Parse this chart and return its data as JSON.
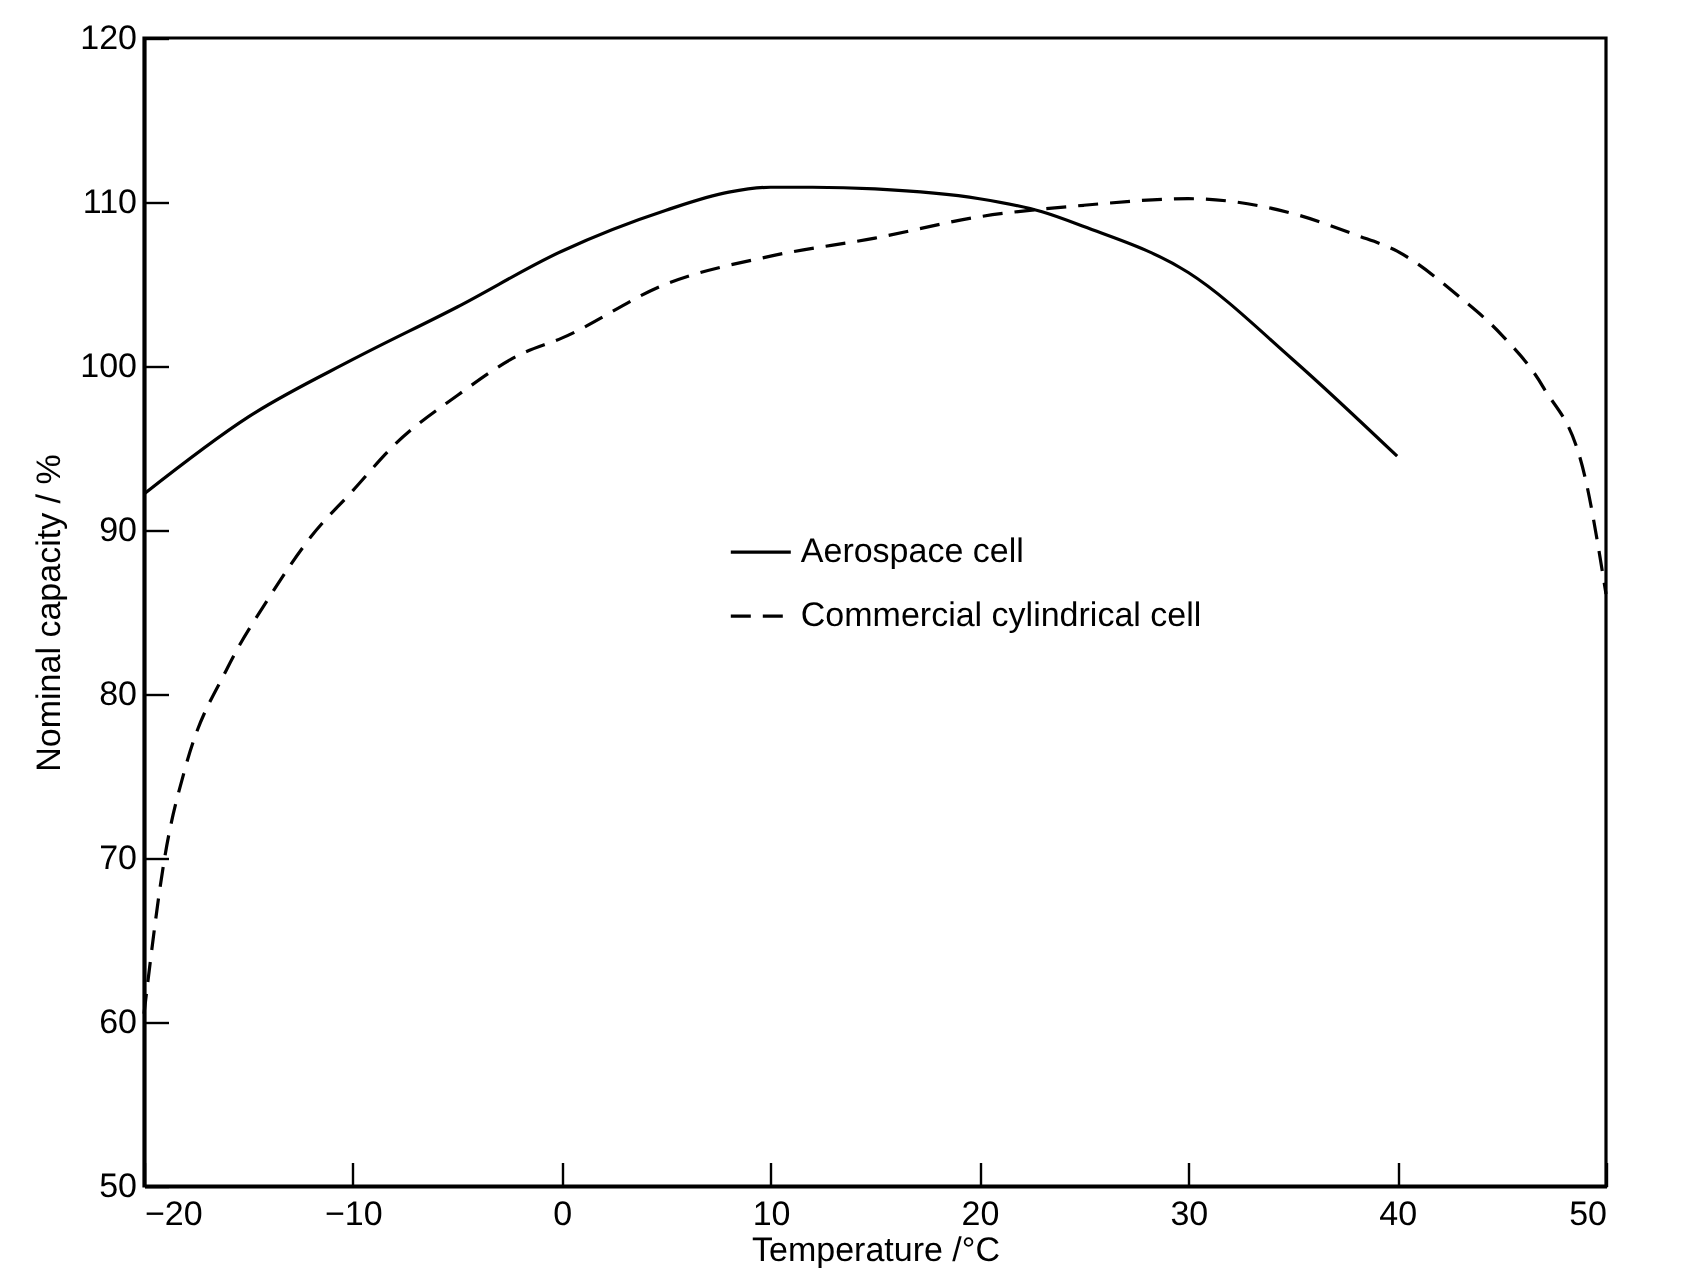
{
  "chart_data": {
    "type": "line",
    "xlabel": "Temperature /°C",
    "ylabel": "Nominal capacity / %",
    "xlim": [
      -20,
      50
    ],
    "ylim": [
      50,
      120
    ],
    "xticks": [
      -20,
      -10,
      0,
      10,
      20,
      30,
      40,
      50
    ],
    "yticks": [
      50,
      60,
      70,
      80,
      90,
      100,
      110,
      120
    ],
    "legend": "right",
    "grid": false,
    "marker": "none",
    "series": [
      {
        "name": "Aerospace cell",
        "color": "#000000",
        "line_style": "solid",
        "x": [
          -20,
          -15,
          -10,
          -5,
          0,
          5,
          8,
          10,
          12,
          15,
          20,
          23,
          25,
          30,
          35,
          40
        ],
        "values": [
          92.2,
          96.9,
          100.4,
          103.6,
          107,
          109.5,
          110.6,
          110.9,
          110.9,
          110.8,
          110.2,
          109.4,
          108.5,
          105.7,
          100.4,
          94.5
        ]
      },
      {
        "name": "Commercial cylindrical cell",
        "color": "#000000",
        "line_style": "dashed",
        "x": [
          -20,
          -19,
          -18,
          -16,
          -14,
          -12,
          -10,
          -8,
          -5,
          -2,
          0,
          5,
          10,
          15,
          20,
          25,
          30,
          35,
          38,
          40,
          43,
          45,
          47,
          49,
          50
        ],
        "values": [
          60.5,
          70.1,
          75.6,
          81.6,
          85.9,
          89.6,
          92.4,
          95.2,
          98.2,
          100.7,
          101.7,
          105,
          106.7,
          107.8,
          109.1,
          109.8,
          110.2,
          109.3,
          108,
          107,
          104.2,
          101.9,
          98.7,
          93.2,
          86.1
        ]
      }
    ]
  }
}
